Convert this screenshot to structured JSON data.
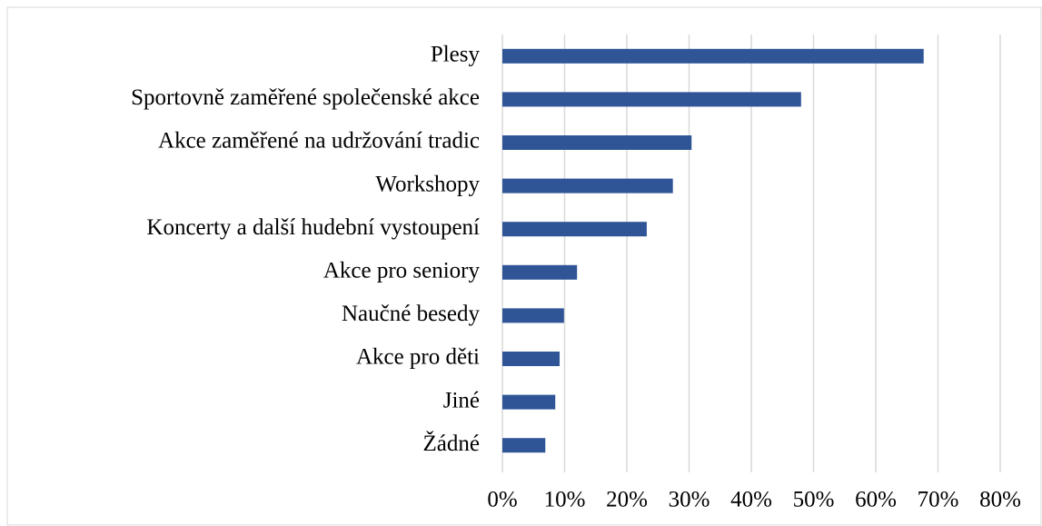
{
  "chart_data": {
    "type": "barh",
    "categories": [
      "Plesy",
      "Sportovně zaměřené společenské akce",
      "Akce zaměřené na udržování tradic",
      "Workshopy",
      "Koncerty a další hudební vystoupení",
      "Akce pro seniory",
      "Naučné besedy",
      "Akce pro děti",
      "Jiné",
      "Žádné"
    ],
    "values": [
      67.7,
      48.0,
      30.4,
      27.4,
      23.2,
      12.0,
      9.9,
      9.2,
      8.5,
      6.9
    ],
    "color": "#2f5597",
    "xlim": [
      0,
      80
    ],
    "xticks": [
      {
        "value": 0,
        "label": "0%"
      },
      {
        "value": 10,
        "label": "10%"
      },
      {
        "value": 20,
        "label": "20%"
      },
      {
        "value": 30,
        "label": "30%"
      },
      {
        "value": 40,
        "label": "40%"
      },
      {
        "value": 50,
        "label": "50%"
      },
      {
        "value": 60,
        "label": "60%"
      },
      {
        "value": 70,
        "label": "70%"
      },
      {
        "value": 80,
        "label": "80%"
      }
    ],
    "grid": true
  }
}
